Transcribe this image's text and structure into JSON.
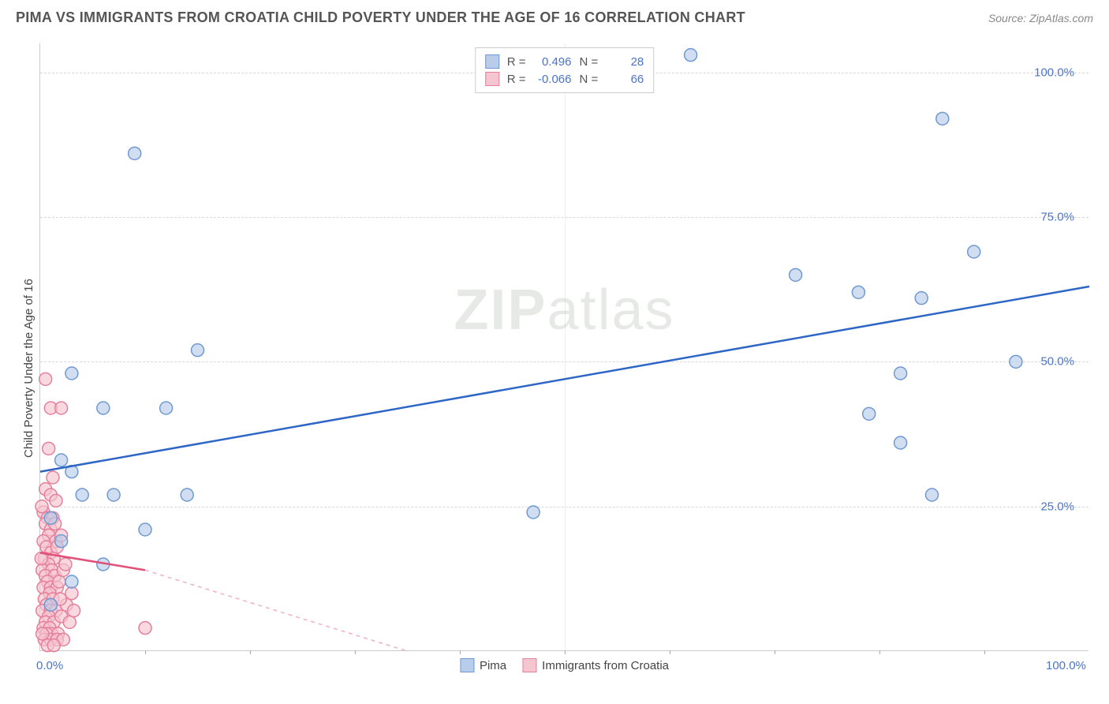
{
  "title": "PIMA VS IMMIGRANTS FROM CROATIA CHILD POVERTY UNDER THE AGE OF 16 CORRELATION CHART",
  "source": "Source: ZipAtlas.com",
  "y_axis_label": "Child Poverty Under the Age of 16",
  "watermark_bold": "ZIP",
  "watermark_light": "atlas",
  "chart": {
    "type": "scatter",
    "xlim": [
      0,
      100
    ],
    "ylim": [
      0,
      105
    ],
    "x_ticks": [
      0,
      100
    ],
    "x_tick_labels": [
      "0.0%",
      "100.0%"
    ],
    "x_minor_ticks": [
      10,
      20,
      30,
      40,
      50,
      60,
      70,
      80,
      90
    ],
    "y_ticks": [
      25,
      50,
      75,
      100
    ],
    "y_tick_labels": [
      "25.0%",
      "50.0%",
      "75.0%",
      "100.0%"
    ],
    "grid_color": "#d8d8d8",
    "background_color": "#ffffff",
    "series": [
      {
        "name": "Pima",
        "color_fill": "#b8cde9",
        "color_stroke": "#6f99d0",
        "marker_radius": 8,
        "R": "0.496",
        "N": "28",
        "trend": {
          "x1": 0,
          "y1": 31,
          "x2": 100,
          "y2": 63,
          "color": "#2e66c6",
          "width": 2.5
        },
        "points": [
          [
            3,
            48
          ],
          [
            9,
            86
          ],
          [
            15,
            52
          ],
          [
            6,
            42
          ],
          [
            12,
            42
          ],
          [
            7,
            27
          ],
          [
            4,
            27
          ],
          [
            10,
            21
          ],
          [
            2,
            33
          ],
          [
            3,
            31
          ],
          [
            6,
            15
          ],
          [
            14,
            27
          ],
          [
            47,
            24
          ],
          [
            62,
            103
          ],
          [
            72,
            65
          ],
          [
            78,
            62
          ],
          [
            84,
            61
          ],
          [
            89,
            69
          ],
          [
            86,
            92
          ],
          [
            79,
            41
          ],
          [
            82,
            48
          ],
          [
            82,
            36
          ],
          [
            85,
            27
          ],
          [
            93,
            50
          ],
          [
            1,
            23
          ],
          [
            2,
            19
          ],
          [
            3,
            12
          ],
          [
            1,
            8
          ]
        ]
      },
      {
        "name": "Immigrants from Croatia",
        "color_fill": "#f5c5d0",
        "color_stroke": "#e57f9c",
        "marker_radius": 8,
        "R": "-0.066",
        "N": "66",
        "trend": {
          "x1": 0,
          "y1": 17,
          "x2": 10,
          "y2": 14,
          "color": "#e05078",
          "width": 2.5
        },
        "trend_dashed": {
          "x1": 10,
          "y1": 14,
          "x2": 35,
          "y2": 0,
          "color": "#f0b0c0",
          "width": 1.5
        },
        "points": [
          [
            0.5,
            47
          ],
          [
            1,
            42
          ],
          [
            2,
            42
          ],
          [
            0.8,
            35
          ],
          [
            1.2,
            30
          ],
          [
            0.5,
            28
          ],
          [
            1,
            27
          ],
          [
            1.5,
            26
          ],
          [
            0.3,
            24
          ],
          [
            0.7,
            23
          ],
          [
            1.2,
            23
          ],
          [
            0.5,
            22
          ],
          [
            1,
            21
          ],
          [
            0.8,
            20
          ],
          [
            0.3,
            19
          ],
          [
            1.5,
            19
          ],
          [
            0.6,
            18
          ],
          [
            1,
            17
          ],
          [
            0.4,
            16
          ],
          [
            1.3,
            16
          ],
          [
            0.8,
            15
          ],
          [
            0.2,
            14
          ],
          [
            1.1,
            14
          ],
          [
            0.5,
            13
          ],
          [
            1.4,
            13
          ],
          [
            0.7,
            12
          ],
          [
            0.3,
            11
          ],
          [
            1,
            11
          ],
          [
            1.6,
            11
          ],
          [
            0.9,
            10
          ],
          [
            0.4,
            9
          ],
          [
            1.2,
            9
          ],
          [
            0.6,
            8
          ],
          [
            0.2,
            7
          ],
          [
            1,
            7
          ],
          [
            1.5,
            7
          ],
          [
            0.8,
            6
          ],
          [
            0.5,
            5
          ],
          [
            1.3,
            5
          ],
          [
            0.3,
            4
          ],
          [
            0.9,
            4
          ],
          [
            1.1,
            3
          ],
          [
            0.6,
            3
          ],
          [
            1.7,
            3
          ],
          [
            10,
            4
          ],
          [
            2,
            6
          ],
          [
            2.5,
            8
          ],
          [
            3,
            10
          ],
          [
            1.8,
            12
          ],
          [
            2.2,
            14
          ],
          [
            1.6,
            18
          ],
          [
            2,
            20
          ],
          [
            1.4,
            22
          ],
          [
            2.4,
            15
          ],
          [
            1.9,
            9
          ],
          [
            2.8,
            5
          ],
          [
            0.4,
            2
          ],
          [
            1,
            2
          ],
          [
            1.6,
            2
          ],
          [
            2.2,
            2
          ],
          [
            0.7,
            1
          ],
          [
            1.3,
            1
          ],
          [
            0.2,
            3
          ],
          [
            3.2,
            7
          ],
          [
            0.1,
            16
          ],
          [
            0.15,
            25
          ]
        ]
      }
    ]
  },
  "legend_top": {
    "R_label": "R =",
    "N_label": "N ="
  },
  "legend_bottom": {
    "items": [
      "Pima",
      "Immigrants from Croatia"
    ]
  }
}
